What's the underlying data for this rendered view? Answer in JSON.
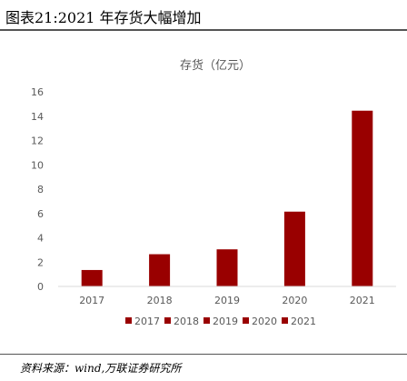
{
  "header": {
    "caption": "图表21:2021 年存货大幅增加"
  },
  "footer": {
    "source": "资料来源：wind,万联证券研究所"
  },
  "colors": {
    "bar": "#990000",
    "axis": "#d9d9d9",
    "text": "#595959"
  },
  "chart_data": {
    "type": "bar",
    "title": "存货（亿元）",
    "categories": [
      "2017",
      "2018",
      "2019",
      "2020",
      "2021"
    ],
    "series": [
      {
        "name": "2017",
        "values": [
          1.35,
          null,
          null,
          null,
          null
        ]
      },
      {
        "name": "2018",
        "values": [
          null,
          2.65,
          null,
          null,
          null
        ]
      },
      {
        "name": "2019",
        "values": [
          null,
          null,
          3.05,
          null,
          null
        ]
      },
      {
        "name": "2020",
        "values": [
          null,
          null,
          null,
          6.15,
          null
        ]
      },
      {
        "name": "2021",
        "values": [
          null,
          null,
          null,
          null,
          14.45
        ]
      }
    ],
    "values": [
      1.35,
      2.65,
      3.05,
      6.15,
      14.45
    ],
    "yticks": [
      "0",
      "2",
      "4",
      "6",
      "8",
      "10",
      "12",
      "14",
      "16"
    ],
    "ylim": [
      0,
      16
    ],
    "grid": false,
    "legend": "bottom",
    "xlabel": "",
    "ylabel": ""
  }
}
